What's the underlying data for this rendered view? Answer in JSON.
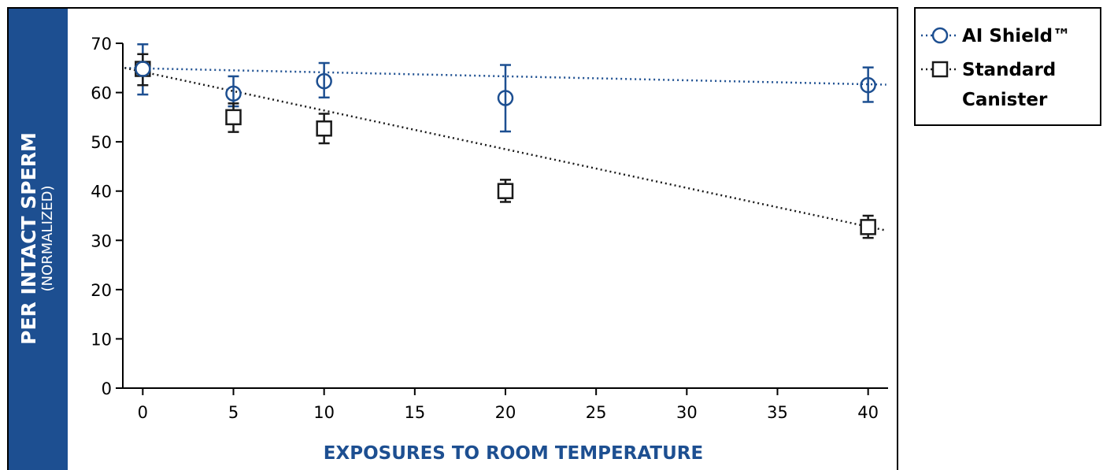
{
  "chart_data": {
    "type": "scatter",
    "xlabel": "EXPOSURES TO ROOM TEMPERATURE",
    "ylabel": "PER INTACT SPERM",
    "ylabel_sub": "(NORMALIZED)",
    "xlim": [
      -1.1,
      41.1
    ],
    "ylim": [
      0,
      70
    ],
    "xticks": [
      0,
      5,
      10,
      15,
      20,
      25,
      30,
      35,
      40
    ],
    "yticks": [
      0,
      10,
      20,
      30,
      40,
      50,
      60,
      70
    ],
    "grid": false,
    "legend_position": "right",
    "series": [
      {
        "name": "AI Shield™",
        "marker": "circle",
        "color": "#1d4f91",
        "x": [
          0,
          5,
          10,
          20,
          40
        ],
        "y": [
          64.8,
          59.8,
          62.3,
          58.9,
          61.5
        ],
        "err_low": [
          59.6,
          57.2,
          59.0,
          52.1,
          58.1
        ],
        "err_high": [
          69.8,
          63.3,
          66.0,
          65.6,
          65.1
        ],
        "trend": [
          65.0,
          61.6
        ]
      },
      {
        "name": "Standard Canister",
        "marker": "square",
        "color": "#1a1a1a",
        "x": [
          0,
          5,
          10,
          20,
          40
        ],
        "y": [
          64.8,
          55.0,
          52.7,
          40.0,
          32.7
        ],
        "err_low": [
          61.5,
          52.0,
          49.7,
          37.8,
          30.5
        ],
        "err_high": [
          67.8,
          57.8,
          55.7,
          42.3,
          35.0
        ],
        "trend": [
          65.0,
          32.0
        ]
      }
    ]
  },
  "legend": {
    "items": [
      {
        "lines": [
          "AI Shield™"
        ]
      },
      {
        "lines": [
          "Standard",
          "Canister"
        ]
      }
    ]
  }
}
